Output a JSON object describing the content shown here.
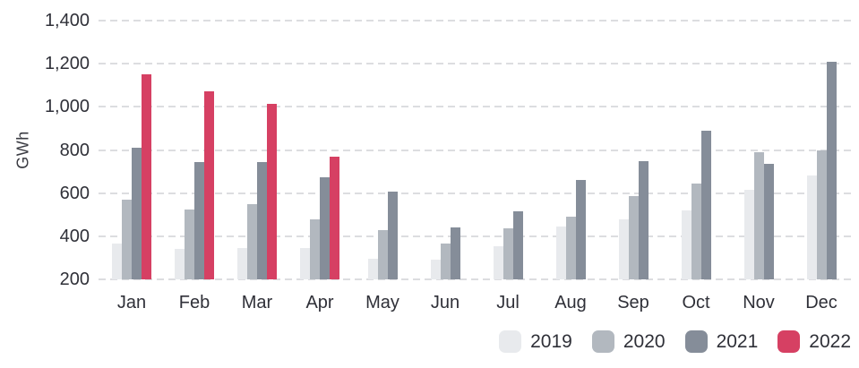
{
  "chart_data": {
    "type": "bar",
    "title": "",
    "xlabel": "",
    "ylabel": "GWh",
    "categories": [
      "Jan",
      "Feb",
      "Mar",
      "Apr",
      "May",
      "Jun",
      "Jul",
      "Aug",
      "Sep",
      "Oct",
      "Nov",
      "Dec"
    ],
    "series": [
      {
        "name": "2019",
        "color": "#e8eaed",
        "values": [
          365,
          340,
          345,
          345,
          295,
          290,
          355,
          445,
          480,
          520,
          615,
          680
        ]
      },
      {
        "name": "2020",
        "color": "#b2b8bf",
        "values": [
          570,
          525,
          550,
          480,
          430,
          365,
          435,
          490,
          585,
          645,
          790,
          800
        ]
      },
      {
        "name": "2021",
        "color": "#858d99",
        "values": [
          810,
          745,
          745,
          675,
          605,
          440,
          515,
          660,
          750,
          890,
          735,
          1210
        ]
      },
      {
        "name": "2022",
        "color": "#d64063",
        "values": [
          1150,
          1070,
          1015,
          770,
          null,
          null,
          null,
          null,
          null,
          null,
          null,
          null
        ]
      }
    ],
    "ylim": [
      200,
      1400
    ],
    "yticks": [
      200,
      400,
      600,
      800,
      1000,
      1200,
      1400
    ],
    "ytick_labels": [
      "200",
      "400",
      "600",
      "800",
      "1,000",
      "1,200",
      "1,400"
    ],
    "grid": "horizontal-dashed",
    "legend_position": "bottom-right",
    "colors": {
      "background": "#ffffff",
      "gridline": "#dcdde0",
      "text": "#2f3038",
      "accent_2022": "#d64063"
    }
  }
}
